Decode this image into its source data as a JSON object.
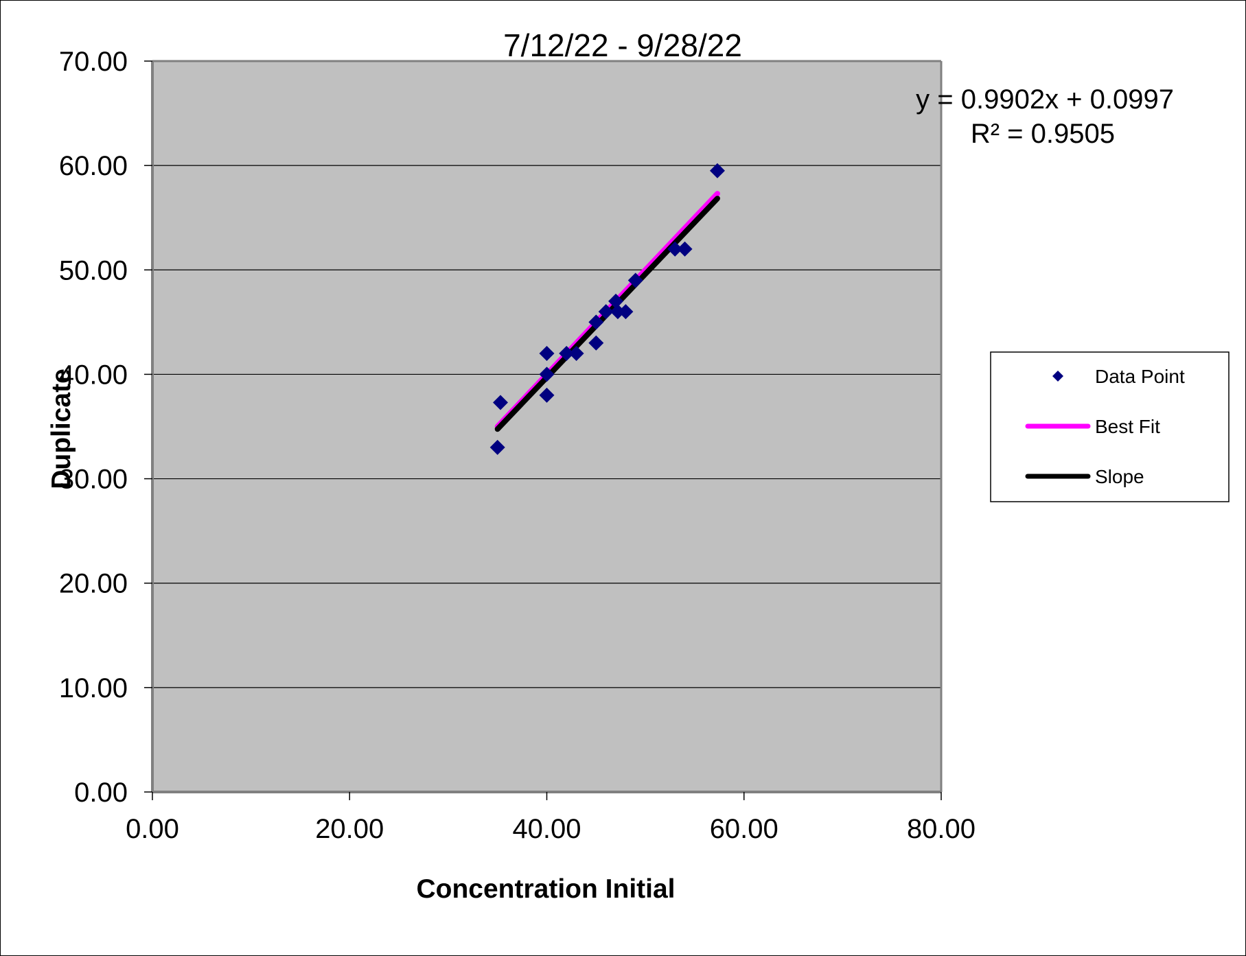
{
  "chart_data": {
    "type": "scatter",
    "title": "7/12/22 - 9/28/22",
    "xlabel": "Concentration Initial",
    "ylabel": "Duplicate",
    "xlim": [
      0,
      80
    ],
    "ylim": [
      0,
      70
    ],
    "x_ticks": [
      "0.00",
      "20.00",
      "40.00",
      "60.00",
      "80.00"
    ],
    "y_ticks": [
      "0.00",
      "10.00",
      "20.00",
      "30.00",
      "40.00",
      "50.00",
      "60.00",
      "70.00"
    ],
    "grid": "horizontal",
    "legend_placement": "right",
    "trendline_label": {
      "equation": "y = 0.9902x + 0.0997",
      "r_squared": "R² = 0.9505"
    },
    "series": [
      {
        "name": "Data Point",
        "kind": "scatter",
        "marker": "diamond",
        "color": "#000080",
        "points": [
          [
            35.0,
            33.0
          ],
          [
            35.3,
            37.3
          ],
          [
            40.0,
            42.0
          ],
          [
            40.0,
            40.0
          ],
          [
            40.0,
            38.0
          ],
          [
            42.0,
            42.0
          ],
          [
            43.0,
            42.0
          ],
          [
            45.0,
            45.0
          ],
          [
            45.0,
            43.0
          ],
          [
            46.0,
            46.0
          ],
          [
            47.0,
            47.0
          ],
          [
            47.2,
            46.0
          ],
          [
            48.0,
            46.0
          ],
          [
            49.0,
            49.0
          ],
          [
            53.0,
            52.0
          ],
          [
            54.0,
            52.0
          ],
          [
            57.3,
            59.5
          ]
        ]
      },
      {
        "name": "Best Fit",
        "kind": "line",
        "color": "#ff00ff",
        "points": [
          [
            35.0,
            35.0
          ],
          [
            57.3,
            57.3
          ]
        ]
      },
      {
        "name": "Slope",
        "kind": "line",
        "color": "#000000",
        "points": [
          [
            35.0,
            34.76
          ],
          [
            57.3,
            56.84
          ]
        ]
      }
    ]
  }
}
